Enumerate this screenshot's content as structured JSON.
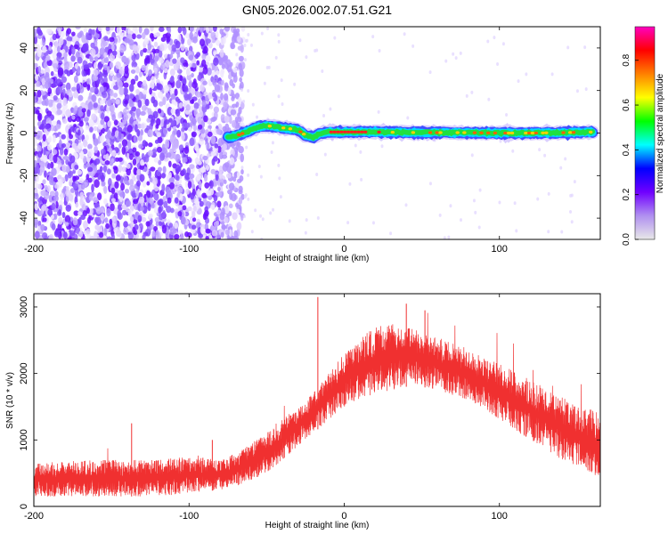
{
  "title": "GN05.2026.002.07.51.G21",
  "chart_data": [
    {
      "type": "heatmap",
      "xlabel": "Height of straight line (km)",
      "ylabel": "Frequency (Hz)",
      "xlim": [
        -200,
        165
      ],
      "ylim": [
        -50,
        50
      ],
      "x_ticks": [
        -200,
        -100,
        0,
        100
      ],
      "y_ticks": [
        -40,
        -20,
        0,
        20,
        40
      ],
      "colorbar": {
        "label": "Normalized spectral amplitude",
        "ticks": [
          0.0,
          0.2,
          0.4,
          0.6,
          0.8
        ],
        "range": [
          0.0,
          0.95
        ],
        "colors": [
          "#e8e8e8",
          "#b090f0",
          "#7000ff",
          "#0000ff",
          "#00ffff",
          "#00ff00",
          "#ffff00",
          "#ff8000",
          "#ff0000",
          "#ff00c0"
        ]
      },
      "ridge": {
        "description_values_only": true,
        "x": [
          -75,
          -70,
          -65,
          -60,
          -55,
          -50,
          -45,
          -40,
          -35,
          -30,
          -25,
          -20,
          -15,
          -10,
          -5,
          0,
          20,
          40,
          60,
          80,
          100,
          120,
          140,
          160
        ],
        "freq": [
          -2,
          -1.5,
          0,
          1.5,
          3,
          3.5,
          3,
          2.5,
          2,
          1.5,
          -1,
          -2,
          0,
          0.5,
          0.5,
          0.5,
          0.5,
          0.3,
          0.2,
          0.2,
          0.0,
          0.0,
          0.2,
          0.5
        ]
      }
    },
    {
      "type": "line",
      "xlabel": "Height of straight line (km)",
      "ylabel": "SNR (10 * v/v)",
      "xlim": [
        -200,
        165
      ],
      "ylim": [
        0,
        3200
      ],
      "x_ticks": [
        -200,
        -100,
        0,
        100
      ],
      "y_ticks": [
        0,
        1000,
        2000,
        3000
      ],
      "color": "#f03030",
      "envelope": {
        "x": [
          -200,
          -160,
          -120,
          -100,
          -80,
          -70,
          -60,
          -50,
          -40,
          -30,
          -20,
          -10,
          0,
          10,
          20,
          30,
          40,
          50,
          60,
          80,
          100,
          120,
          140,
          160,
          165
        ],
        "lower": [
          150,
          150,
          150,
          200,
          250,
          300,
          400,
          500,
          700,
          900,
          1100,
          1300,
          1500,
          1600,
          1700,
          1750,
          1800,
          1800,
          1750,
          1600,
          1300,
          1000,
          700,
          500,
          400
        ],
        "upper": [
          650,
          700,
          700,
          750,
          700,
          800,
          950,
          1100,
          1300,
          1500,
          1700,
          2000,
          2300,
          2550,
          2700,
          2750,
          2700,
          2650,
          2550,
          2350,
          2150,
          1900,
          1650,
          1450,
          1400
        ]
      },
      "spikes": [
        {
          "x": -137,
          "y": 1250
        },
        {
          "x": -85,
          "y": 1000
        },
        {
          "x": -17,
          "y": 3150
        },
        {
          "x": 40,
          "y": 3050
        },
        {
          "x": 52,
          "y": 2950
        }
      ]
    }
  ]
}
